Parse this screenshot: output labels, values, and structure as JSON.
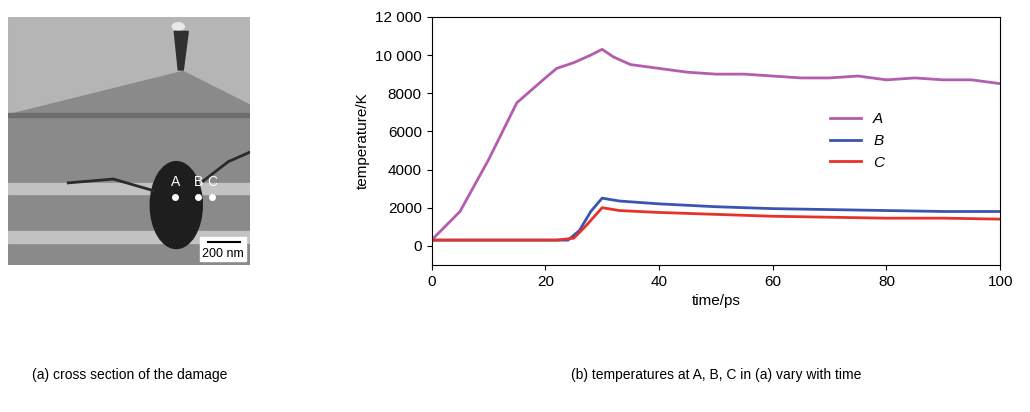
{
  "image_panel": {
    "caption": "(a) cross section of the damage",
    "points": [
      "A",
      "B",
      "C"
    ],
    "scale_bar": "200 nm"
  },
  "chart_data": {
    "type": "line",
    "caption": "(b) temperatures at A, B, C in (a) vary with time",
    "x_label": "time/ps",
    "y_label": "temperature/K",
    "xlim": [
      0,
      100
    ],
    "xticks": [
      0,
      20,
      40,
      60,
      80,
      100
    ],
    "ylim": [
      -1000,
      12000
    ],
    "yticks": [
      0,
      2000,
      4000,
      6000,
      8000,
      {
        "value": 10000,
        "label": "10 000"
      },
      {
        "value": 12000,
        "label": "12 000"
      }
    ],
    "legend": "center right",
    "grid": false,
    "series": [
      {
        "name": "A",
        "color": "#b45cae",
        "x": [
          0,
          5,
          10,
          15,
          20,
          22,
          25,
          28,
          30,
          32,
          35,
          40,
          45,
          50,
          55,
          60,
          65,
          70,
          75,
          80,
          85,
          90,
          95,
          100
        ],
        "values": [
          300,
          1800,
          4500,
          7500,
          8800,
          9300,
          9600,
          10000,
          10300,
          9900,
          9500,
          9300,
          9100,
          9000,
          9000,
          8900,
          8800,
          8800,
          8900,
          8700,
          8800,
          8700,
          8700,
          8500
        ]
      },
      {
        "name": "B",
        "color": "#3a55b0",
        "x": [
          0,
          20,
          24,
          26,
          28,
          30,
          33,
          40,
          50,
          60,
          70,
          80,
          90,
          100
        ],
        "values": [
          300,
          300,
          300,
          800,
          1800,
          2500,
          2350,
          2200,
          2050,
          1950,
          1900,
          1850,
          1800,
          1800
        ]
      },
      {
        "name": "C",
        "color": "#e5322a",
        "x": [
          0,
          22,
          25,
          27,
          30,
          33,
          40,
          50,
          60,
          70,
          80,
          90,
          100
        ],
        "values": [
          300,
          300,
          400,
          1000,
          2000,
          1850,
          1750,
          1650,
          1550,
          1500,
          1450,
          1450,
          1400
        ]
      }
    ]
  }
}
